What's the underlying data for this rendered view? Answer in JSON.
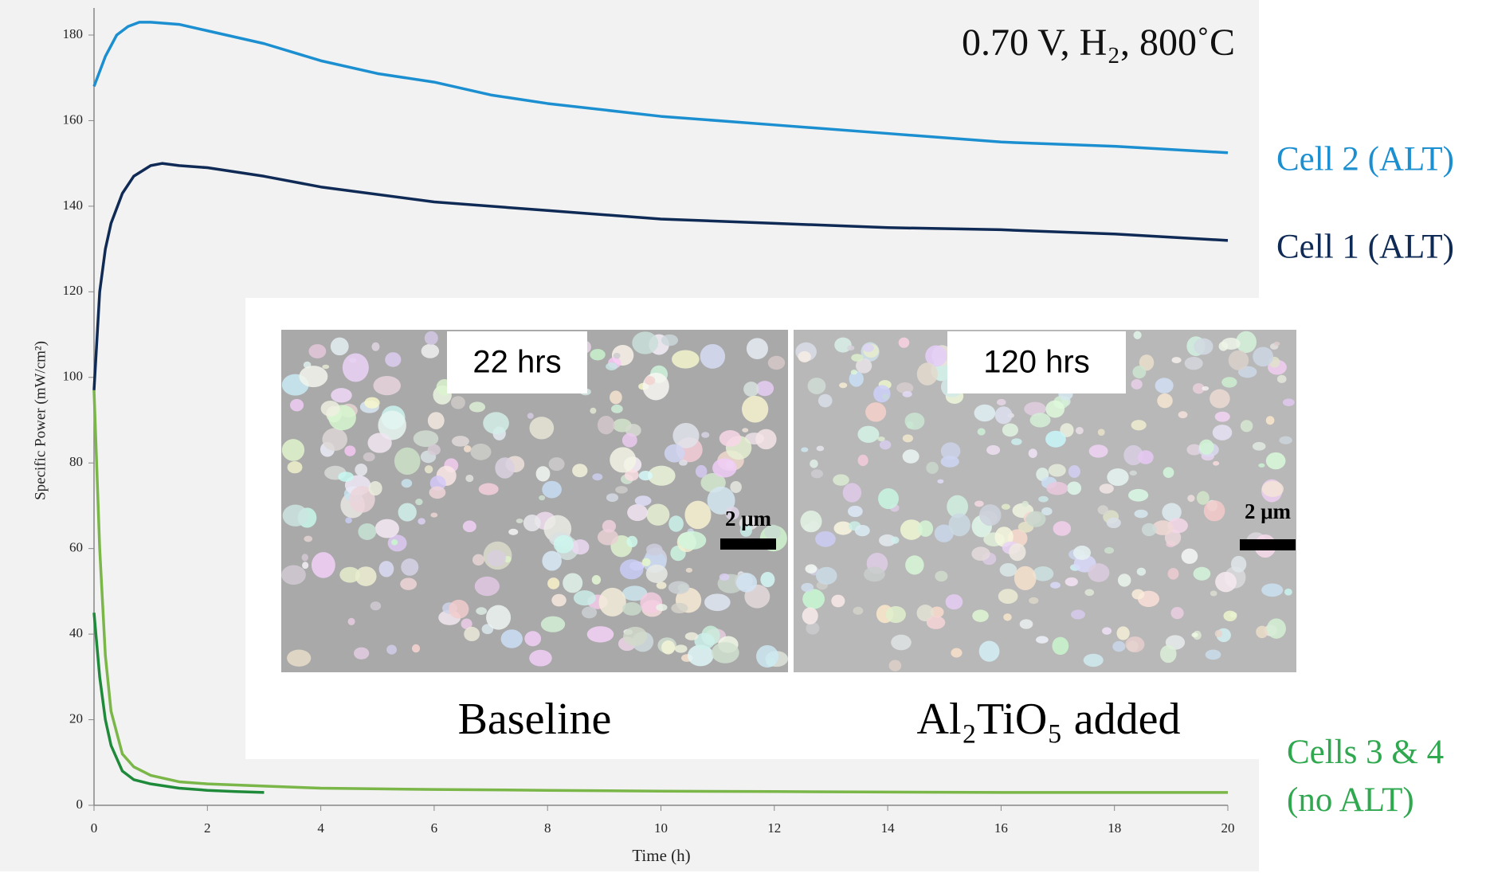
{
  "chart_data": {
    "type": "line",
    "title": "0.70 V, H₂, 800˚C",
    "x_label": "Time (h)",
    "y_label": "Specific Power (mW/cm²)",
    "xlim": [
      0,
      20
    ],
    "xticks": [
      0,
      2,
      4,
      6,
      8,
      10,
      12,
      14,
      16,
      18,
      20
    ],
    "ylim": [
      0,
      180
    ],
    "yticks": [
      0,
      20,
      40,
      60,
      80,
      100,
      120,
      140,
      160,
      180
    ],
    "series": [
      {
        "name": "Cell 2 (ALT)",
        "color": "#1b8fd0",
        "x": [
          0,
          0.2,
          0.4,
          0.6,
          0.8,
          1,
          1.5,
          2,
          3,
          4,
          5,
          6,
          7,
          8,
          10,
          12,
          14,
          16,
          18,
          20
        ],
        "values": [
          168,
          175,
          180,
          182,
          183,
          183,
          182.5,
          181,
          178,
          174,
          171,
          169,
          166,
          164,
          161,
          159,
          157,
          155,
          154,
          152.5
        ]
      },
      {
        "name": "Cell 1 (ALT)",
        "color": "#0f2a55",
        "x": [
          0,
          0.1,
          0.2,
          0.3,
          0.5,
          0.7,
          1,
          1.2,
          1.5,
          2,
          3,
          4,
          6,
          8,
          10,
          12,
          14,
          16,
          18,
          20
        ],
        "values": [
          97,
          120,
          130,
          136,
          143,
          147,
          149.5,
          150,
          149.5,
          149,
          147,
          144.5,
          141,
          139,
          137,
          136,
          135,
          134.5,
          133.5,
          132
        ]
      },
      {
        "color": "#7ab648",
        "x": [
          0,
          0.1,
          0.2,
          0.3,
          0.5,
          0.7,
          1,
          1.5,
          2,
          3,
          4,
          6,
          8,
          10,
          12,
          14,
          16,
          18,
          20
        ],
        "values": [
          97,
          60,
          35,
          22,
          12,
          9,
          7,
          5.5,
          5,
          4.5,
          4,
          3.7,
          3.5,
          3.3,
          3.2,
          3.1,
          3,
          3,
          3
        ]
      },
      {
        "color": "#1e8a3a",
        "x": [
          0,
          0.1,
          0.2,
          0.3,
          0.5,
          0.7,
          1,
          1.5,
          2,
          2.5,
          3
        ],
        "values": [
          45,
          30,
          20,
          14,
          8,
          6,
          5,
          4,
          3.5,
          3.2,
          3
        ]
      }
    ],
    "group_label": {
      "lines": [
        "Cells 3 & 4",
        "(no ALT)"
      ],
      "color": "#2fa84f"
    },
    "inset": {
      "panels": [
        {
          "time": "22 hrs",
          "scale": "2 μm",
          "caption": "Baseline"
        },
        {
          "time": "120 hrs",
          "scale": "2 μm",
          "caption": "Al₂TiO₅ added"
        }
      ]
    }
  }
}
